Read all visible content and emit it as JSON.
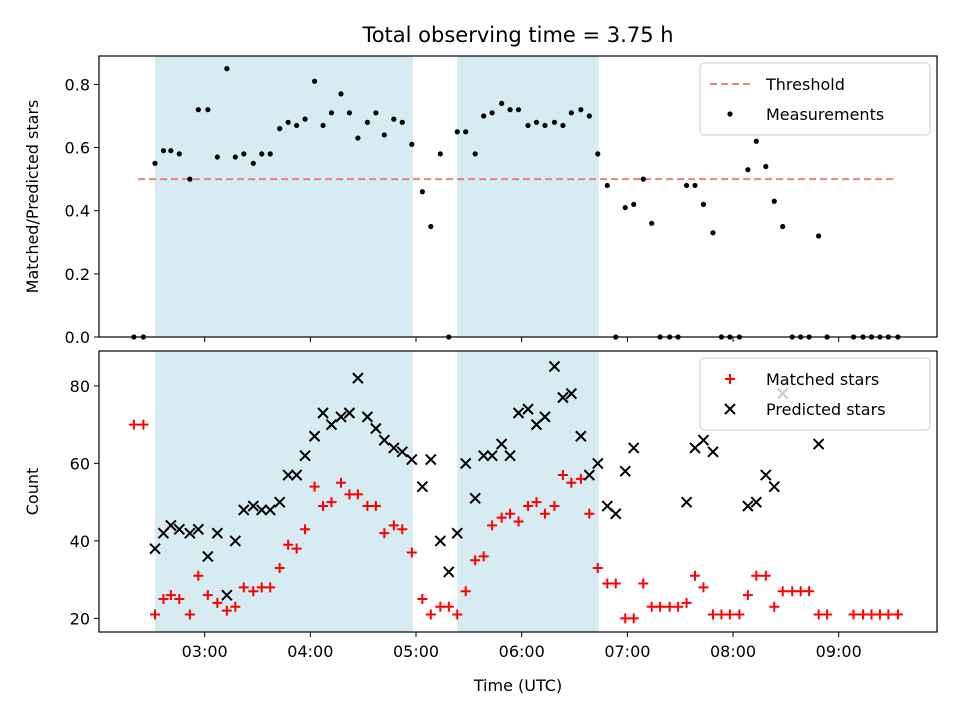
{
  "title": "Total observing time = 3.75 h",
  "chart_data": [
    {
      "type": "scatter",
      "ylabel": "Matched/Predicted stars",
      "xlabel": "",
      "xlim": [
        2.0,
        9.93
      ],
      "ylim": [
        0.0,
        0.89
      ],
      "yticks": [
        0.0,
        0.2,
        0.4,
        0.6,
        0.8
      ],
      "ytick_labels": [
        "0.0",
        "0.2",
        "0.4",
        "0.6",
        "0.8"
      ],
      "grid": false,
      "legend": "top-right",
      "shaded_intervals": [
        [
          2.53,
          4.97
        ],
        [
          5.39,
          6.73
        ]
      ],
      "threshold": {
        "name": "Threshold",
        "y": 0.5,
        "x_range": [
          2.37,
          9.53
        ],
        "color": "#f08080",
        "style": "dashed"
      },
      "series": [
        {
          "name": "Measurements",
          "color": "#000000",
          "points": [
            [
              2.33,
              0.0
            ],
            [
              2.42,
              0.0
            ],
            [
              2.53,
              0.55
            ],
            [
              2.61,
              0.59
            ],
            [
              2.68,
              0.59
            ],
            [
              2.76,
              0.58
            ],
            [
              2.86,
              0.5
            ],
            [
              2.94,
              0.72
            ],
            [
              3.03,
              0.72
            ],
            [
              3.12,
              0.57
            ],
            [
              3.21,
              0.85
            ],
            [
              3.29,
              0.57
            ],
            [
              3.37,
              0.58
            ],
            [
              3.46,
              0.55
            ],
            [
              3.54,
              0.58
            ],
            [
              3.62,
              0.58
            ],
            [
              3.71,
              0.66
            ],
            [
              3.79,
              0.68
            ],
            [
              3.87,
              0.67
            ],
            [
              3.95,
              0.69
            ],
            [
              4.04,
              0.81
            ],
            [
              4.12,
              0.67
            ],
            [
              4.2,
              0.71
            ],
            [
              4.29,
              0.77
            ],
            [
              4.37,
              0.71
            ],
            [
              4.45,
              0.63
            ],
            [
              4.54,
              0.68
            ],
            [
              4.62,
              0.71
            ],
            [
              4.7,
              0.64
            ],
            [
              4.79,
              0.69
            ],
            [
              4.87,
              0.68
            ],
            [
              4.96,
              0.61
            ],
            [
              5.06,
              0.46
            ],
            [
              5.14,
              0.35
            ],
            [
              5.23,
              0.58
            ],
            [
              5.31,
              0.0
            ],
            [
              5.39,
              0.65
            ],
            [
              5.47,
              0.65
            ],
            [
              5.56,
              0.58
            ],
            [
              5.64,
              0.7
            ],
            [
              5.72,
              0.71
            ],
            [
              5.81,
              0.74
            ],
            [
              5.89,
              0.72
            ],
            [
              5.97,
              0.72
            ],
            [
              6.06,
              0.67
            ],
            [
              6.14,
              0.68
            ],
            [
              6.22,
              0.67
            ],
            [
              6.31,
              0.68
            ],
            [
              6.39,
              0.67
            ],
            [
              6.47,
              0.71
            ],
            [
              6.56,
              0.72
            ],
            [
              6.64,
              0.7
            ],
            [
              6.72,
              0.58
            ],
            [
              6.81,
              0.48
            ],
            [
              6.89,
              0.0
            ],
            [
              6.98,
              0.41
            ],
            [
              7.06,
              0.42
            ],
            [
              7.15,
              0.5
            ],
            [
              7.23,
              0.36
            ],
            [
              7.31,
              0.0
            ],
            [
              7.4,
              0.0
            ],
            [
              7.48,
              0.0
            ],
            [
              7.56,
              0.48
            ],
            [
              7.64,
              0.48
            ],
            [
              7.72,
              0.42
            ],
            [
              7.81,
              0.33
            ],
            [
              7.89,
              0.0
            ],
            [
              7.97,
              0.0
            ],
            [
              8.06,
              0.0
            ],
            [
              8.14,
              0.53
            ],
            [
              8.22,
              0.62
            ],
            [
              8.31,
              0.54
            ],
            [
              8.39,
              0.43
            ],
            [
              8.47,
              0.35
            ],
            [
              8.56,
              0.0
            ],
            [
              8.64,
              0.0
            ],
            [
              8.72,
              0.0
            ],
            [
              8.81,
              0.32
            ],
            [
              8.89,
              0.0
            ],
            [
              9.14,
              0.0
            ],
            [
              9.23,
              0.0
            ],
            [
              9.31,
              0.0
            ],
            [
              9.39,
              0.0
            ],
            [
              9.47,
              0.0
            ],
            [
              9.56,
              0.0
            ]
          ]
        }
      ]
    },
    {
      "type": "scatter",
      "ylabel": "Count",
      "xlabel": "Time (UTC)",
      "xlim": [
        2.0,
        9.93
      ],
      "ylim": [
        16.5,
        89
      ],
      "yticks": [
        20,
        40,
        60,
        80
      ],
      "ytick_labels": [
        "20",
        "40",
        "60",
        "80"
      ],
      "xticks": [
        3,
        4,
        5,
        6,
        7,
        8,
        9
      ],
      "xtick_labels": [
        "03:00",
        "04:00",
        "05:00",
        "06:00",
        "07:00",
        "08:00",
        "09:00"
      ],
      "grid": false,
      "legend": "top-right",
      "shaded_intervals": [
        [
          2.53,
          4.97
        ],
        [
          5.39,
          6.73
        ]
      ],
      "series": [
        {
          "name": "Matched stars",
          "marker": "plus",
          "color": "#ff0000",
          "points": [
            [
              2.33,
              70
            ],
            [
              2.42,
              70
            ],
            [
              2.53,
              21
            ],
            [
              2.61,
              25
            ],
            [
              2.68,
              26
            ],
            [
              2.76,
              25
            ],
            [
              2.86,
              21
            ],
            [
              2.94,
              31
            ],
            [
              3.03,
              26
            ],
            [
              3.12,
              24
            ],
            [
              3.21,
              22
            ],
            [
              3.29,
              23
            ],
            [
              3.37,
              28
            ],
            [
              3.46,
              27
            ],
            [
              3.54,
              28
            ],
            [
              3.62,
              28
            ],
            [
              3.71,
              33
            ],
            [
              3.79,
              39
            ],
            [
              3.87,
              38
            ],
            [
              3.95,
              43
            ],
            [
              4.04,
              54
            ],
            [
              4.12,
              49
            ],
            [
              4.2,
              50
            ],
            [
              4.29,
              55
            ],
            [
              4.37,
              52
            ],
            [
              4.45,
              52
            ],
            [
              4.54,
              49
            ],
            [
              4.62,
              49
            ],
            [
              4.7,
              42
            ],
            [
              4.79,
              44
            ],
            [
              4.87,
              43
            ],
            [
              4.96,
              37
            ],
            [
              5.06,
              25
            ],
            [
              5.14,
              21
            ],
            [
              5.23,
              23
            ],
            [
              5.31,
              23
            ],
            [
              5.39,
              21
            ],
            [
              5.47,
              27
            ],
            [
              5.56,
              35
            ],
            [
              5.64,
              36
            ],
            [
              5.72,
              44
            ],
            [
              5.81,
              46
            ],
            [
              5.89,
              47
            ],
            [
              5.97,
              45
            ],
            [
              6.06,
              49
            ],
            [
              6.14,
              50
            ],
            [
              6.22,
              47
            ],
            [
              6.31,
              49
            ],
            [
              6.39,
              57
            ],
            [
              6.47,
              55
            ],
            [
              6.56,
              56
            ],
            [
              6.64,
              47
            ],
            [
              6.72,
              33
            ],
            [
              6.81,
              29
            ],
            [
              6.89,
              29
            ],
            [
              6.98,
              20
            ],
            [
              7.06,
              20
            ],
            [
              7.15,
              29
            ],
            [
              7.23,
              23
            ],
            [
              7.31,
              23
            ],
            [
              7.4,
              23
            ],
            [
              7.48,
              23
            ],
            [
              7.56,
              24
            ],
            [
              7.64,
              31
            ],
            [
              7.72,
              28
            ],
            [
              7.81,
              21
            ],
            [
              7.89,
              21
            ],
            [
              7.97,
              21
            ],
            [
              8.06,
              21
            ],
            [
              8.14,
              26
            ],
            [
              8.22,
              31
            ],
            [
              8.31,
              31
            ],
            [
              8.39,
              23
            ],
            [
              8.47,
              27
            ],
            [
              8.56,
              27
            ],
            [
              8.64,
              27
            ],
            [
              8.72,
              27
            ],
            [
              8.81,
              21
            ],
            [
              8.89,
              21
            ],
            [
              9.14,
              21
            ],
            [
              9.23,
              21
            ],
            [
              9.31,
              21
            ],
            [
              9.39,
              21
            ],
            [
              9.47,
              21
            ],
            [
              9.56,
              21
            ]
          ]
        },
        {
          "name": "Predicted stars",
          "marker": "x",
          "color": "#000000",
          "points": [
            [
              2.53,
              38
            ],
            [
              2.61,
              42
            ],
            [
              2.68,
              44
            ],
            [
              2.76,
              43
            ],
            [
              2.86,
              42
            ],
            [
              2.94,
              43
            ],
            [
              3.03,
              36
            ],
            [
              3.12,
              42
            ],
            [
              3.21,
              26
            ],
            [
              3.29,
              40
            ],
            [
              3.37,
              48
            ],
            [
              3.46,
              49
            ],
            [
              3.54,
              48
            ],
            [
              3.62,
              48
            ],
            [
              3.71,
              50
            ],
            [
              3.79,
              57
            ],
            [
              3.87,
              57
            ],
            [
              3.95,
              62
            ],
            [
              4.04,
              67
            ],
            [
              4.12,
              73
            ],
            [
              4.2,
              70
            ],
            [
              4.29,
              72
            ],
            [
              4.37,
              73
            ],
            [
              4.45,
              82
            ],
            [
              4.54,
              72
            ],
            [
              4.62,
              69
            ],
            [
              4.7,
              66
            ],
            [
              4.79,
              64
            ],
            [
              4.87,
              63
            ],
            [
              4.96,
              61
            ],
            [
              5.06,
              54
            ],
            [
              5.14,
              61
            ],
            [
              5.23,
              40
            ],
            [
              5.31,
              32
            ],
            [
              5.39,
              42
            ],
            [
              5.47,
              60
            ],
            [
              5.56,
              51
            ],
            [
              5.64,
              62
            ],
            [
              5.72,
              62
            ],
            [
              5.81,
              65
            ],
            [
              5.89,
              62
            ],
            [
              5.97,
              73
            ],
            [
              6.06,
              74
            ],
            [
              6.14,
              70
            ],
            [
              6.22,
              72
            ],
            [
              6.31,
              85
            ],
            [
              6.39,
              77
            ],
            [
              6.47,
              78
            ],
            [
              6.56,
              67
            ],
            [
              6.64,
              57
            ],
            [
              6.72,
              60
            ],
            [
              6.81,
              49
            ],
            [
              6.89,
              47
            ],
            [
              6.98,
              58
            ],
            [
              7.06,
              64
            ],
            [
              7.56,
              50
            ],
            [
              7.64,
              64
            ],
            [
              7.72,
              66
            ],
            [
              7.81,
              63
            ],
            [
              8.14,
              49
            ],
            [
              8.22,
              50
            ],
            [
              8.31,
              57
            ],
            [
              8.39,
              54
            ],
            [
              8.47,
              78
            ],
            [
              8.81,
              65
            ]
          ]
        }
      ]
    }
  ]
}
